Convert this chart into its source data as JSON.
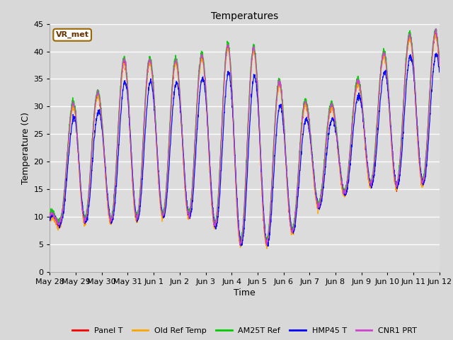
{
  "title": "Temperatures",
  "xlabel": "Time",
  "ylabel": "Temperature (C)",
  "annotation": "VR_met",
  "ylim": [
    0,
    45
  ],
  "fig_bg": "#d8d8d8",
  "plot_bg": "#dcdcdc",
  "series": {
    "Panel T": {
      "color": "#ff0000"
    },
    "Old Ref Temp": {
      "color": "#ffa500"
    },
    "AM25T Ref": {
      "color": "#00cc00"
    },
    "HMP45 T": {
      "color": "#0000ff"
    },
    "CNR1 PRT": {
      "color": "#cc44cc"
    }
  },
  "tick_labels": [
    "May 28",
    "May 29",
    "May 30",
    "May 31",
    "Jun 1",
    "Jun 2",
    "Jun 3",
    "Jun 4",
    "Jun 5",
    "Jun 6",
    "Jun 7",
    "Jun 8",
    "Jun 9",
    "Jun 10",
    "Jun 11",
    "Jun 12"
  ],
  "num_days": 15,
  "points_per_day": 144,
  "daily_min": [
    8,
    9,
    9,
    9,
    10,
    10,
    10,
    5,
    5,
    5,
    11,
    13,
    16,
    15,
    16
  ],
  "daily_max": [
    10,
    33,
    32,
    39,
    38,
    38,
    39,
    41,
    40,
    33,
    30,
    30,
    35,
    40,
    43
  ],
  "phase": 0.6
}
